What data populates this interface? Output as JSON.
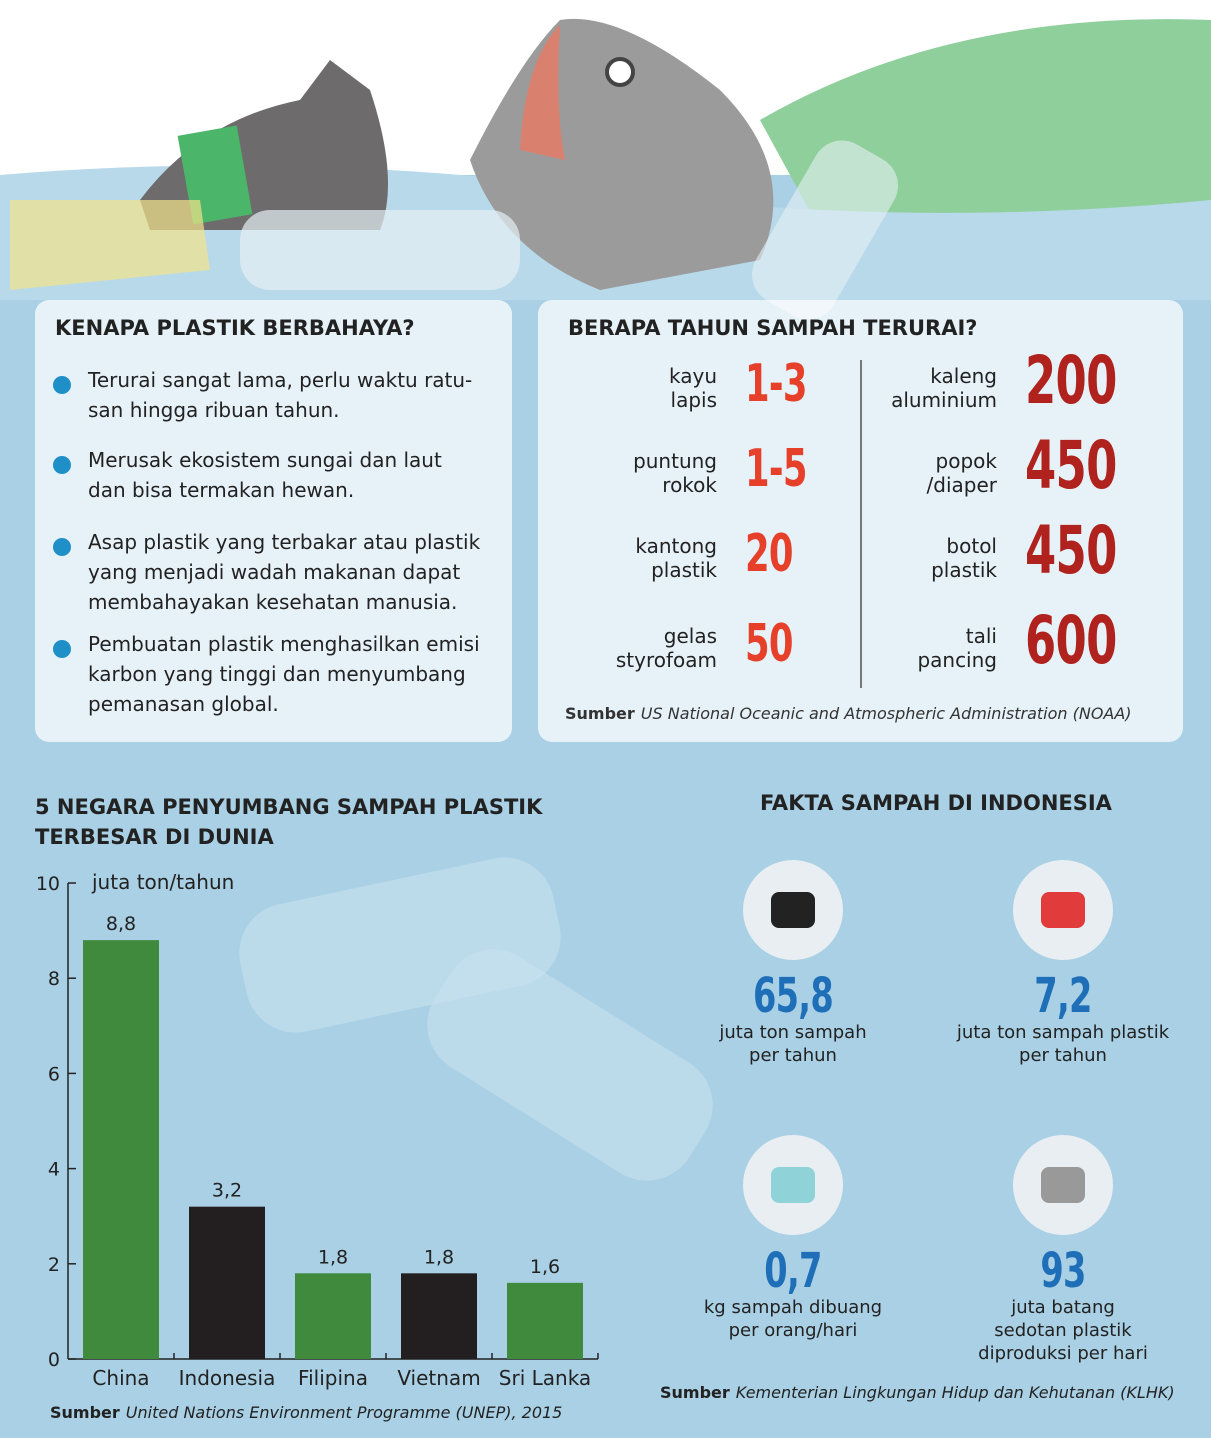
{
  "why": {
    "title": "KENAPA PLASTIK BERBAHAYA?",
    "items": [
      [
        "Terurai sangat lama, perlu waktu ratu-",
        "san hingga ribuan tahun."
      ],
      [
        "Merusak ekosistem sungai dan laut",
        "dan bisa termakan hewan."
      ],
      [
        "Asap plastik yang terbakar atau plastik",
        "yang menjadi wadah makanan dapat",
        "membahayakan kesehatan manusia."
      ],
      [
        "Pembuatan plastik menghasilkan emisi",
        "karbon yang tinggi dan menyumbang",
        "pemanasan global."
      ]
    ]
  },
  "decompose": {
    "title": "BERAPA TAHUN SAMPAH TERURAI?",
    "items": [
      {
        "label": [
          "kayu",
          "lapis"
        ],
        "years": "1-3"
      },
      {
        "label": [
          "puntung",
          "rokok"
        ],
        "years": "1-5"
      },
      {
        "label": [
          "kantong",
          "plastik"
        ],
        "years": "20"
      },
      {
        "label": [
          "gelas",
          "styrofoam"
        ],
        "years": "50"
      },
      {
        "label": [
          "kaleng",
          "aluminium"
        ],
        "years": "200"
      },
      {
        "label": [
          "popok",
          "/diaper"
        ],
        "years": "450"
      },
      {
        "label": [
          "botol",
          "plastik"
        ],
        "years": "450"
      },
      {
        "label": [
          "tali",
          "pancing"
        ],
        "years": "600"
      }
    ],
    "source_label": "Sumber",
    "source": "US National Oceanic and Atmospheric Administration (NOAA)"
  },
  "chart_data": {
    "type": "bar",
    "title": "5 NEGARA PENYUMBANG SAMPAH PLASTIK TERBESAR DI DUNIA",
    "y_label": "juta ton/tahun",
    "categories": [
      "China",
      "Indonesia",
      "Filipina",
      "Vietnam",
      "Sri Lanka"
    ],
    "values": [
      8.8,
      3.2,
      1.8,
      1.8,
      1.6
    ],
    "value_labels": [
      "8,8",
      "3,2",
      "1,8",
      "1,8",
      "1,6"
    ],
    "colors": [
      "#3f8a3c",
      "#231f20",
      "#3f8a3c",
      "#231f20",
      "#3f8a3c"
    ],
    "ylim": [
      0,
      10
    ],
    "yticks": [
      0,
      2,
      4,
      6,
      8,
      10
    ],
    "source_label": "Sumber",
    "source": "United Nations Environment Programme (UNEP), 2015"
  },
  "facts": {
    "title": "FAKTA SAMPAH DI INDONESIA",
    "items": [
      {
        "value": "65,8",
        "lines": [
          "juta ton sampah",
          "per tahun"
        ]
      },
      {
        "value": "7,2",
        "lines": [
          "juta ton sampah plastik",
          "per tahun"
        ]
      },
      {
        "value": "0,7",
        "lines": [
          "kg sampah dibuang",
          "per orang/hari"
        ]
      },
      {
        "value": "93",
        "lines": [
          "juta batang",
          "sedotan plastik",
          "diproduksi per hari"
        ]
      }
    ],
    "source_label": "Sumber",
    "source": "Kementerian Lingkungan Hidup dan Kehutanan (KLHK)"
  }
}
